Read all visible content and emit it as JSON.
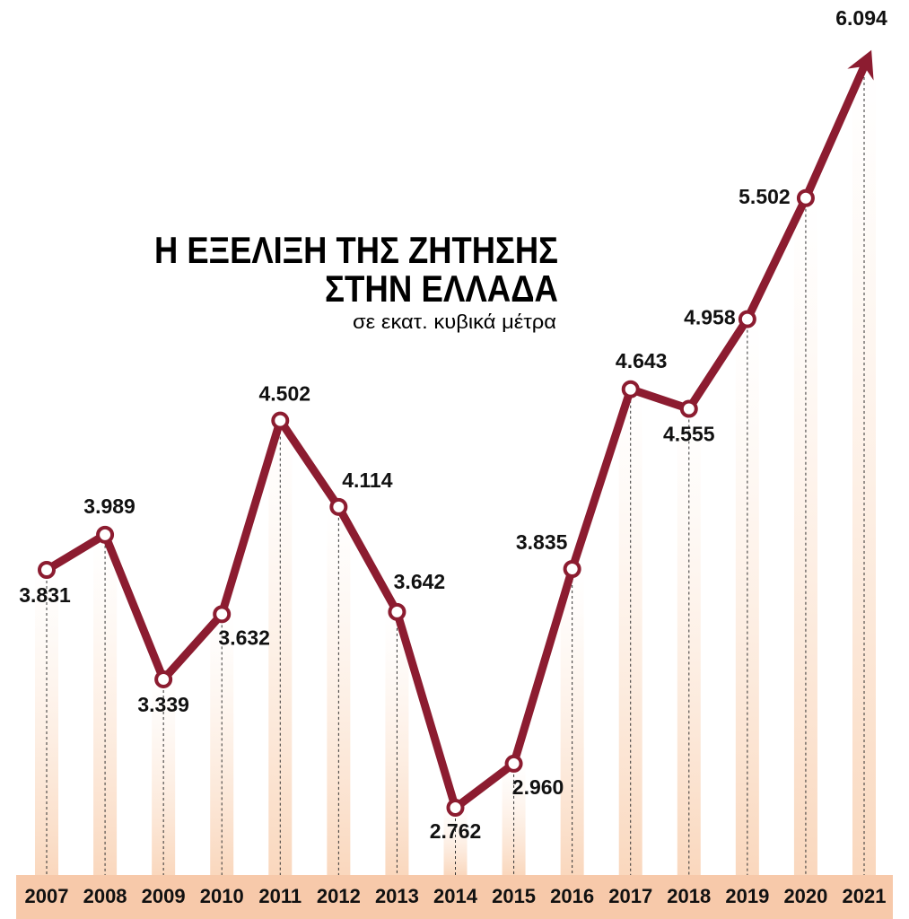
{
  "chart_data": {
    "type": "line",
    "title": [
      "Η ΕΞΕΛΙΞΗ ΤΗΣ ΖΗΤΗΣΗΣ",
      "ΣΤΗΝ ΕΛΛΑΔΑ"
    ],
    "subtitle": "σε εκατ. κυβικά μέτρα",
    "categories": [
      "2007",
      "2008",
      "2009",
      "2010",
      "2011",
      "2012",
      "2013",
      "2014",
      "2015",
      "2016",
      "2017",
      "2018",
      "2019",
      "2020",
      "2021"
    ],
    "values": [
      3831,
      3989,
      3339,
      3632,
      4502,
      4114,
      3642,
      2762,
      2960,
      3835,
      4643,
      4555,
      4958,
      5502,
      6094
    ],
    "value_labels": [
      "3.831",
      "3.989",
      "3.339",
      "3.632",
      "4.502",
      "4.114",
      "3.642",
      "2.762",
      "2.960",
      "3.835",
      "4.643",
      "4.555",
      "4.958",
      "5.502",
      "6.094"
    ],
    "color": "#8c1c30"
  }
}
